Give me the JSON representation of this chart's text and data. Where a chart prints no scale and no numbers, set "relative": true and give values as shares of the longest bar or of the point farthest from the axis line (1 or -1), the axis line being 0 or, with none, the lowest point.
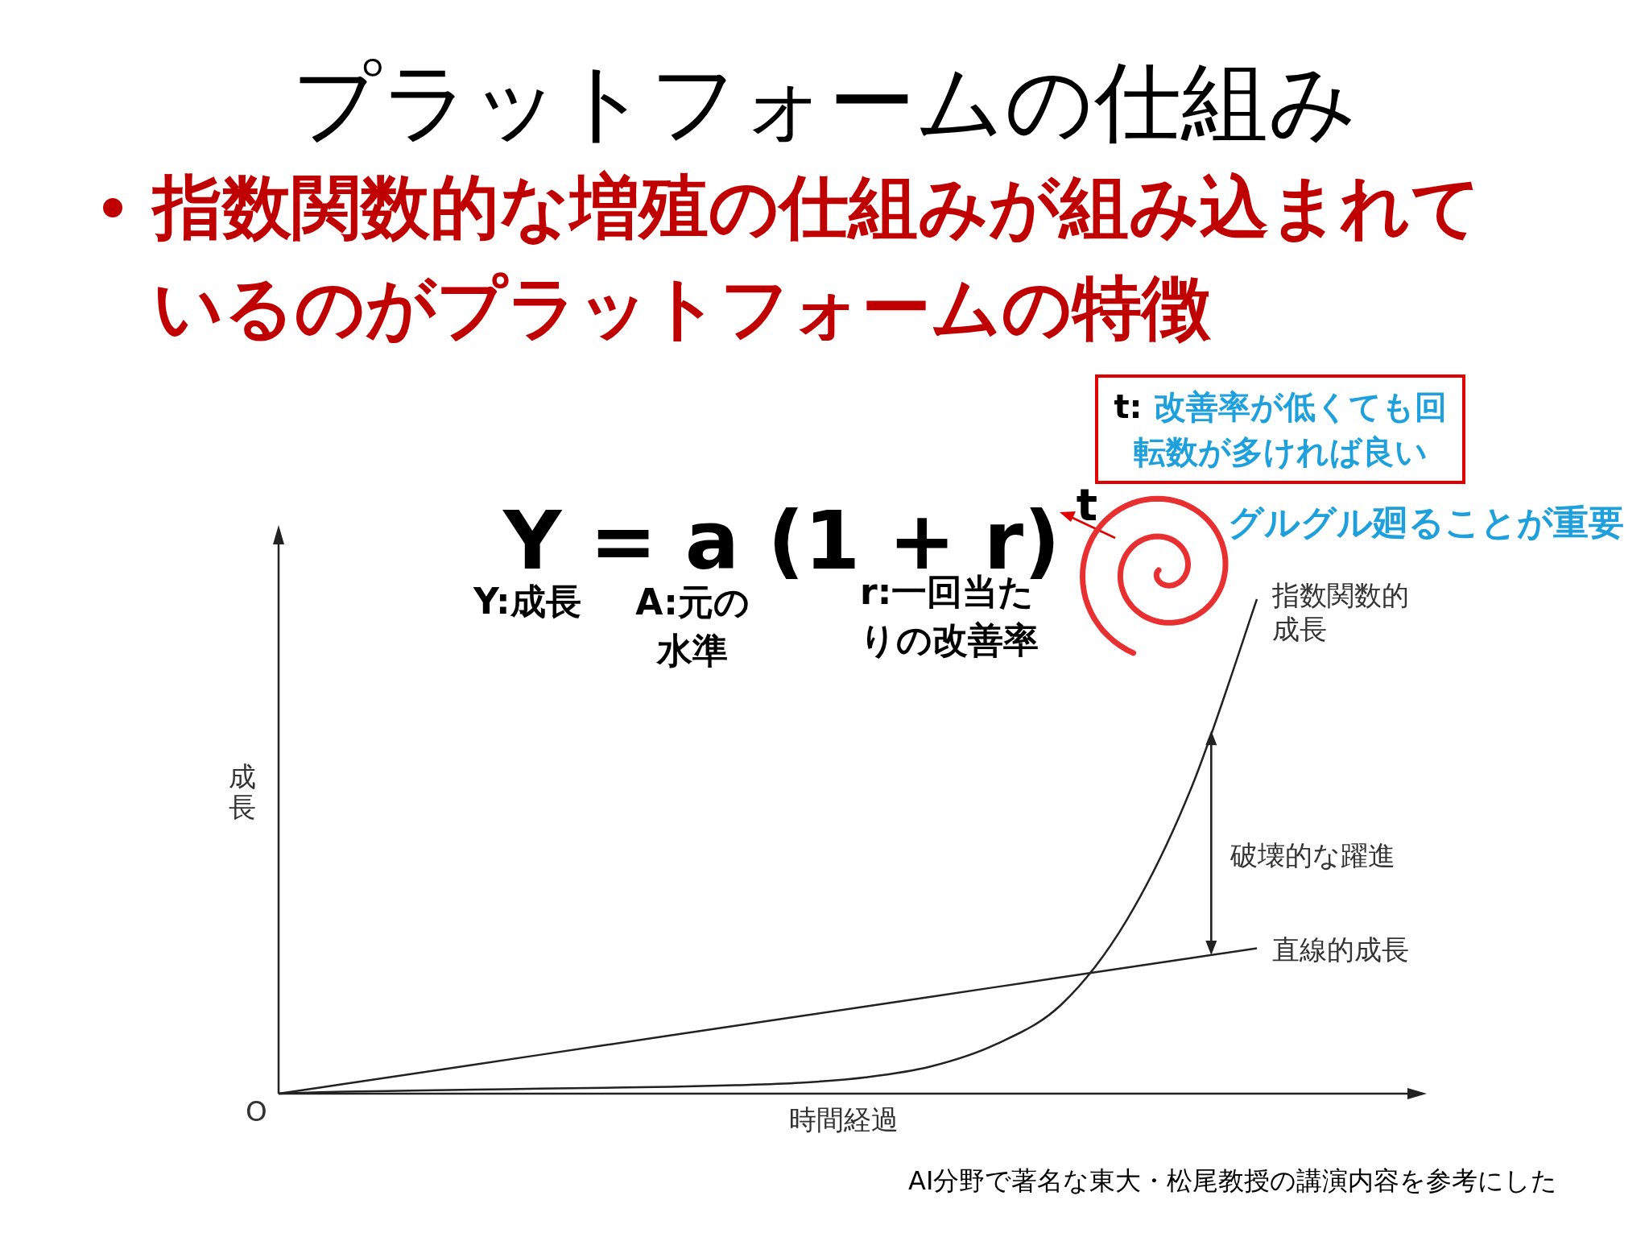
{
  "chart_data": {
    "type": "line",
    "relative": true,
    "title": "プラットフォームの仕組み",
    "subtitle": "指数関数的な増殖の仕組みが組み込まれているのがプラットフォームの特徴",
    "xlabel": "時間経過",
    "ylabel": "成長",
    "categories": [
      null,
      null,
      null,
      null,
      null,
      null,
      null,
      null,
      null,
      null,
      null,
      null,
      null,
      null,
      null,
      null
    ],
    "series": [
      {
        "name": "指数関数的成長",
        "color": "#222222",
        "values": [
          0,
          0.004,
          0.006,
          0.008,
          0.01,
          0.012,
          0.014,
          0.017,
          0.022,
          0.033,
          0.055,
          0.1,
          0.18,
          0.35,
          0.62,
          1
        ]
      },
      {
        "name": "直線的成長",
        "color": "#222222",
        "values": [
          0,
          0.0196,
          0.0392,
          0.0588,
          0.0784,
          0.098,
          0.1176,
          0.1372,
          0.1568,
          0.1764,
          0.196,
          0.2156,
          0.2352,
          0.2548,
          0.2744,
          0.294
        ]
      }
    ],
    "annotations": [
      "Y = a (1 + r)$^{t}$",
      "Y:成長",
      "A:元の水準",
      "r:一回当たりの改善率",
      "t: 改善率が低くても回転数が多ければ良い",
      "グルグル廻ることが重要",
      "O",
      "破壊的な躍進",
      "AI分野で著名な東大・松尾教授の講演内容を参考にした"
    ],
    "marker": "none",
    "line_style": "solid",
    "grid": false
  }
}
